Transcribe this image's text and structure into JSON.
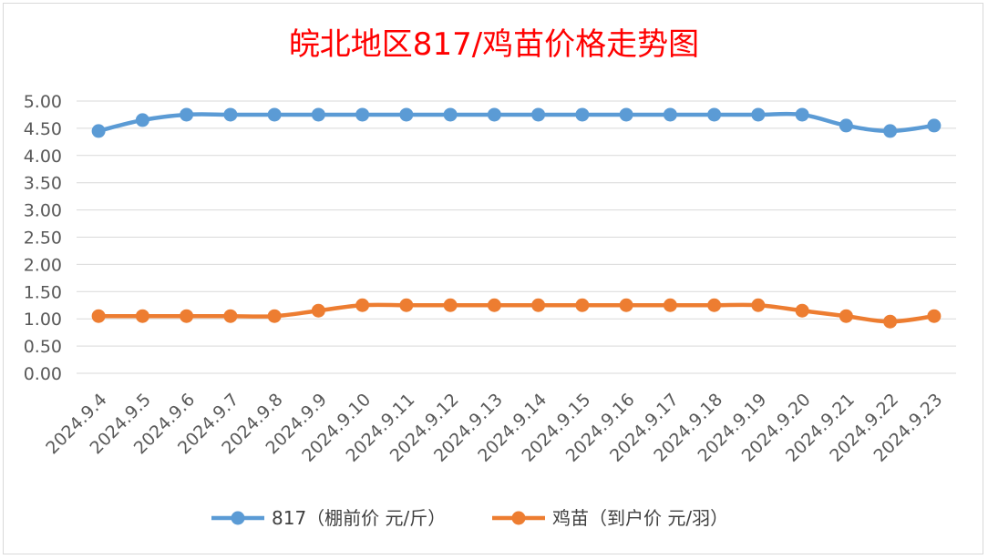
{
  "chart_data": {
    "type": "line",
    "title": "皖北地区817/鸡苗价格走势图",
    "xlabel": "",
    "ylabel": "",
    "ylim": [
      0,
      5
    ],
    "y_tick_step": 0.5,
    "y_tick_labels": [
      "0.00",
      "0.50",
      "1.00",
      "1.50",
      "2.00",
      "2.50",
      "3.00",
      "3.50",
      "4.00",
      "4.50",
      "5.00"
    ],
    "grid": true,
    "legend_position": "bottom",
    "categories": [
      "2024.9.4",
      "2024.9.5",
      "2024.9.6",
      "2024.9.7",
      "2024.9.8",
      "2024.9.9",
      "2024.9.10",
      "2024.9.11",
      "2024.9.12",
      "2024.9.13",
      "2024.9.14",
      "2024.9.15",
      "2024.9.16",
      "2024.9.17",
      "2024.9.18",
      "2024.9.19",
      "2024.9.20",
      "2024.9.21",
      "2024.9.22",
      "2024.9.23"
    ],
    "series": [
      {
        "name": "817（棚前价 元/斤）",
        "color": "#5b9bd5",
        "values": [
          4.45,
          4.65,
          4.75,
          4.75,
          4.75,
          4.75,
          4.75,
          4.75,
          4.75,
          4.75,
          4.75,
          4.75,
          4.75,
          4.75,
          4.75,
          4.75,
          4.75,
          4.55,
          4.45,
          4.55
        ]
      },
      {
        "name": "鸡苗（到户价 元/羽）",
        "color": "#ed7d31",
        "values": [
          1.05,
          1.05,
          1.05,
          1.05,
          1.05,
          1.15,
          1.25,
          1.25,
          1.25,
          1.25,
          1.25,
          1.25,
          1.25,
          1.25,
          1.25,
          1.25,
          1.15,
          1.05,
          0.95,
          1.05
        ]
      }
    ],
    "title_color": "#ff0000",
    "grid_color": "#d9d9d9",
    "label_color": "#595959"
  }
}
